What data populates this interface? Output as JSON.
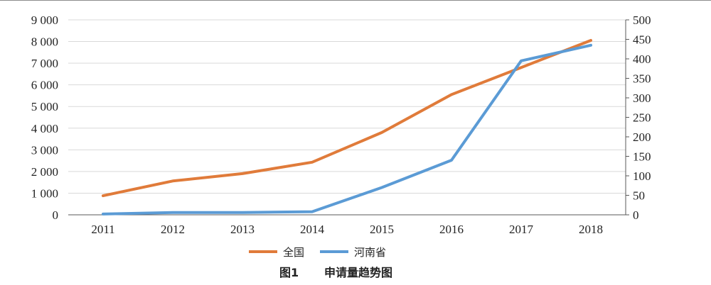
{
  "colors": {
    "national": "#e07b3a",
    "henan": "#5b9bd5",
    "grid": "#d9d9d9",
    "axis": "#595959"
  },
  "chart_data": {
    "type": "line",
    "title": "",
    "categories": [
      "2011",
      "2012",
      "2013",
      "2014",
      "2015",
      "2016",
      "2017",
      "2018"
    ],
    "y_left": {
      "range": [
        0,
        9000
      ],
      "ticks": [
        0,
        1000,
        2000,
        3000,
        4000,
        5000,
        6000,
        7000,
        8000,
        9000
      ],
      "tick_labels": [
        "0",
        "1 000",
        "2 000",
        "3 000",
        "4 000",
        "5 000",
        "6 000",
        "7 000",
        "8 000",
        "9 000"
      ]
    },
    "y_right": {
      "range": [
        0,
        500
      ],
      "ticks": [
        0,
        50,
        100,
        150,
        200,
        250,
        300,
        350,
        400,
        450,
        500
      ],
      "tick_labels": [
        "0",
        "50",
        "100",
        "150",
        "200",
        "250",
        "300",
        "350",
        "400",
        "450",
        "500"
      ]
    },
    "grid": true,
    "legend_position": "bottom",
    "series": [
      {
        "name": "全国",
        "axis": "left",
        "color": "#e07b3a",
        "values": [
          880,
          1560,
          1900,
          2430,
          3800,
          5550,
          6800,
          8050
        ]
      },
      {
        "name": "河南省",
        "axis": "right",
        "color": "#5b9bd5",
        "values": [
          2,
          6,
          6,
          8,
          70,
          140,
          395,
          435
        ]
      }
    ]
  },
  "caption": {
    "label": "图1",
    "text": "申请量趋势图"
  }
}
